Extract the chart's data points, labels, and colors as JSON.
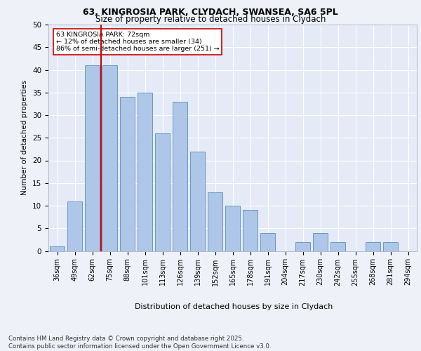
{
  "title1": "63, KINGROSIA PARK, CLYDACH, SWANSEA, SA6 5PL",
  "title2": "Size of property relative to detached houses in Clydach",
  "xlabel": "Distribution of detached houses by size in Clydach",
  "ylabel": "Number of detached properties",
  "categories": [
    "36sqm",
    "49sqm",
    "62sqm",
    "75sqm",
    "88sqm",
    "101sqm",
    "113sqm",
    "126sqm",
    "139sqm",
    "152sqm",
    "165sqm",
    "178sqm",
    "191sqm",
    "204sqm",
    "217sqm",
    "230sqm",
    "242sqm",
    "255sqm",
    "268sqm",
    "281sqm",
    "294sqm"
  ],
  "values": [
    1,
    11,
    41,
    41,
    34,
    35,
    26,
    33,
    22,
    13,
    10,
    9,
    4,
    0,
    2,
    4,
    2,
    0,
    2,
    2,
    0
  ],
  "bar_color": "#aec6e8",
  "bar_edge_color": "#5a8fc0",
  "vline_color": "#cc0000",
  "annotation_text": "63 KINGROSIA PARK: 72sqm\n← 12% of detached houses are smaller (34)\n86% of semi-detached houses are larger (251) →",
  "annotation_box_color": "#ffffff",
  "annotation_box_edge": "#cc0000",
  "footer": "Contains HM Land Registry data © Crown copyright and database right 2025.\nContains public sector information licensed under the Open Government Licence v3.0.",
  "ylim": [
    0,
    50
  ],
  "background_color": "#eef2f8",
  "plot_bg_color": "#e4eaf6",
  "grid_color": "#ffffff"
}
